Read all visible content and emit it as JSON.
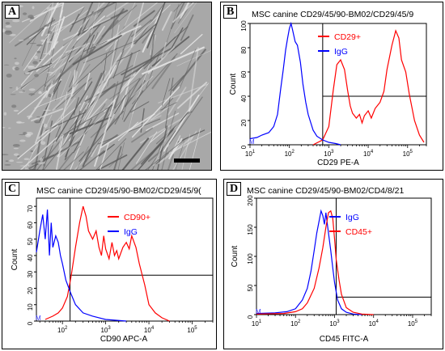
{
  "panels": {
    "A": {
      "letter": "A"
    },
    "B": {
      "letter": "B"
    },
    "C": {
      "letter": "C"
    },
    "D": {
      "letter": "D"
    }
  },
  "colors": {
    "marker": "#ff0000",
    "isotype": "#0000ff",
    "gate": "#000000",
    "bg": "#ffffff"
  },
  "chart_data": [
    {
      "id": "B",
      "type": "area",
      "title": "MSC canine CD29/45/90-BM02/CD29/45/9",
      "xlabel": "CD29 PE-A",
      "ylabel": "Count",
      "x_scale": "log",
      "xlim": [
        10,
        300000
      ],
      "ylim": [
        0,
        100
      ],
      "x_ticks": [
        {
          "base": "10",
          "exp": "1",
          "value": 10
        },
        {
          "base": "10",
          "exp": "2",
          "value": 100
        },
        {
          "base": "10",
          "exp": "3",
          "value": 1000
        },
        {
          "base": "10",
          "exp": "4",
          "value": 10000
        },
        {
          "base": "10",
          "exp": "5",
          "value": 100000
        }
      ],
      "y_ticks": [
        0,
        20,
        40,
        60,
        80,
        100
      ],
      "axis_marker": "M",
      "legend_placement": "top-right",
      "gate": {
        "x_min": 700,
        "level": 40
      },
      "series": [
        {
          "name": "CD29+",
          "color": "red",
          "points": [
            [
              400,
              0
            ],
            [
              700,
              4
            ],
            [
              1000,
              15
            ],
            [
              1300,
              45
            ],
            [
              1600,
              66
            ],
            [
              2000,
              70
            ],
            [
              2500,
              62
            ],
            [
              3000,
              45
            ],
            [
              3500,
              32
            ],
            [
              4000,
              26
            ],
            [
              5000,
              22
            ],
            [
              6000,
              25
            ],
            [
              7000,
              18
            ],
            [
              8000,
              24
            ],
            [
              10000,
              28
            ],
            [
              12000,
              22
            ],
            [
              15000,
              30
            ],
            [
              20000,
              35
            ],
            [
              25000,
              44
            ],
            [
              30000,
              62
            ],
            [
              40000,
              82
            ],
            [
              50000,
              94
            ],
            [
              60000,
              88
            ],
            [
              70000,
              70
            ],
            [
              90000,
              60
            ],
            [
              110000,
              42
            ],
            [
              150000,
              20
            ],
            [
              200000,
              8
            ],
            [
              260000,
              2
            ]
          ]
        },
        {
          "name": "IgG",
          "color": "blue",
          "points": [
            [
              10,
              5
            ],
            [
              15,
              6
            ],
            [
              20,
              8
            ],
            [
              30,
              10
            ],
            [
              40,
              15
            ],
            [
              50,
              25
            ],
            [
              60,
              46
            ],
            [
              70,
              62
            ],
            [
              80,
              78
            ],
            [
              90,
              88
            ],
            [
              100,
              96
            ],
            [
              110,
              100
            ],
            [
              120,
              95
            ],
            [
              140,
              85
            ],
            [
              160,
              82
            ],
            [
              190,
              68
            ],
            [
              220,
              50
            ],
            [
              260,
              35
            ],
            [
              300,
              25
            ],
            [
              400,
              12
            ],
            [
              500,
              7
            ],
            [
              700,
              4
            ],
            [
              1000,
              2
            ],
            [
              1500,
              1
            ],
            [
              2000,
              0
            ]
          ]
        }
      ]
    },
    {
      "id": "C",
      "type": "area",
      "title": "MSC canine CD29/45/90-BM02/CD29/45/9(",
      "xlabel": "CD90 APC-A",
      "ylabel": "Count",
      "x_scale": "log",
      "xlim": [
        25,
        300000
      ],
      "ylim": [
        0,
        75
      ],
      "x_ticks": [
        {
          "base": "10",
          "exp": "2",
          "value": 100
        },
        {
          "base": "10",
          "exp": "3",
          "value": 1000
        },
        {
          "base": "10",
          "exp": "4",
          "value": 10000
        },
        {
          "base": "10",
          "exp": "5",
          "value": 100000
        }
      ],
      "y_ticks": [
        0,
        10,
        20,
        30,
        40,
        50,
        60,
        70
      ],
      "axis_marker": "M",
      "legend_placement": "top-right",
      "gate": {
        "x_min": 150,
        "level": 28
      },
      "series": [
        {
          "name": "CD90+",
          "color": "red",
          "points": [
            [
              40,
              1
            ],
            [
              60,
              3
            ],
            [
              80,
              5
            ],
            [
              100,
              8
            ],
            [
              130,
              15
            ],
            [
              160,
              28
            ],
            [
              200,
              45
            ],
            [
              250,
              60
            ],
            [
              300,
              70
            ],
            [
              350,
              64
            ],
            [
              400,
              55
            ],
            [
              500,
              50
            ],
            [
              600,
              55
            ],
            [
              700,
              45
            ],
            [
              800,
              40
            ],
            [
              900,
              52
            ],
            [
              1000,
              44
            ],
            [
              1200,
              38
            ],
            [
              1400,
              48
            ],
            [
              1600,
              40
            ],
            [
              1800,
              43
            ],
            [
              2000,
              38
            ],
            [
              2500,
              45
            ],
            [
              3000,
              48
            ],
            [
              3500,
              44
            ],
            [
              4000,
              52
            ],
            [
              5000,
              45
            ],
            [
              6000,
              35
            ],
            [
              8000,
              22
            ],
            [
              10000,
              10
            ],
            [
              14000,
              5
            ],
            [
              20000,
              2
            ],
            [
              30000,
              0
            ]
          ]
        },
        {
          "name": "IgG",
          "color": "blue",
          "points": [
            [
              25,
              42
            ],
            [
              30,
              55
            ],
            [
              35,
              65
            ],
            [
              40,
              50
            ],
            [
              45,
              68
            ],
            [
              50,
              40
            ],
            [
              55,
              60
            ],
            [
              60,
              45
            ],
            [
              70,
              52
            ],
            [
              80,
              48
            ],
            [
              90,
              40
            ],
            [
              100,
              35
            ],
            [
              120,
              25
            ],
            [
              150,
              18
            ],
            [
              200,
              10
            ],
            [
              300,
              5
            ],
            [
              500,
              3
            ],
            [
              1000,
              1
            ],
            [
              3000,
              0
            ]
          ]
        }
      ]
    },
    {
      "id": "D",
      "type": "area",
      "title": "MSC canine CD29/45/90-BM02/CD4/8/21",
      "xlabel": "CD45 FITC-A",
      "ylabel": "Count",
      "x_scale": "log",
      "xlim": [
        10,
        300000
      ],
      "ylim": [
        0,
        200
      ],
      "x_ticks": [
        {
          "base": "10",
          "exp": "1",
          "value": 10
        },
        {
          "base": "10",
          "exp": "2",
          "value": 100
        },
        {
          "base": "10",
          "exp": "3",
          "value": 1000
        },
        {
          "base": "10",
          "exp": "4",
          "value": 10000
        },
        {
          "base": "10",
          "exp": "5",
          "value": 100000
        }
      ],
      "y_ticks": [
        0,
        50,
        100,
        150,
        200
      ],
      "axis_marker": "M",
      "legend_placement": "top-right",
      "gate": {
        "x_min": 1100,
        "level": 30
      },
      "series": [
        {
          "name": "IgG",
          "color": "blue",
          "points": [
            [
              10,
              2
            ],
            [
              30,
              3
            ],
            [
              60,
              5
            ],
            [
              100,
              10
            ],
            [
              150,
              25
            ],
            [
              200,
              45
            ],
            [
              250,
              75
            ],
            [
              300,
              110
            ],
            [
              350,
              140
            ],
            [
              400,
              160
            ],
            [
              450,
              178
            ],
            [
              500,
              170
            ],
            [
              550,
              155
            ],
            [
              600,
              175
            ],
            [
              700,
              140
            ],
            [
              800,
              110
            ],
            [
              900,
              80
            ],
            [
              1000,
              55
            ],
            [
              1200,
              25
            ],
            [
              1500,
              10
            ],
            [
              2000,
              4
            ],
            [
              3000,
              1
            ],
            [
              5000,
              0
            ]
          ]
        },
        {
          "name": "CD45+",
          "color": "red",
          "points": [
            [
              10,
              1
            ],
            [
              50,
              2
            ],
            [
              100,
              5
            ],
            [
              150,
              10
            ],
            [
              200,
              20
            ],
            [
              300,
              45
            ],
            [
              400,
              80
            ],
            [
              500,
              115
            ],
            [
              600,
              150
            ],
            [
              700,
              175
            ],
            [
              800,
              178
            ],
            [
              900,
              165
            ],
            [
              1000,
              130
            ],
            [
              1100,
              95
            ],
            [
              1300,
              60
            ],
            [
              1500,
              35
            ],
            [
              2000,
              12
            ],
            [
              3000,
              4
            ],
            [
              5000,
              1
            ],
            [
              10000,
              0
            ]
          ]
        }
      ]
    }
  ]
}
